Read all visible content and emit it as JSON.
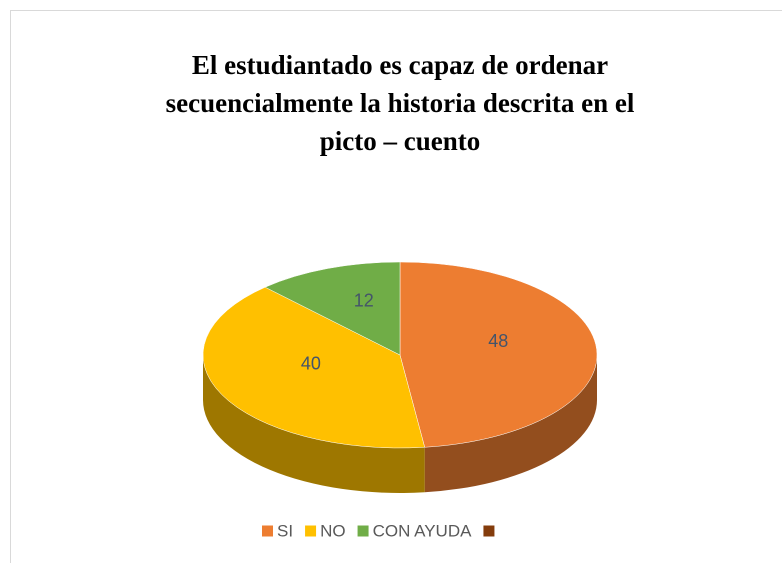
{
  "chart_data": {
    "type": "pie",
    "title": [
      "El estudiantado es capaz de ordenar",
      "secuencialmente la historia descrita en el",
      "picto – cuento"
    ],
    "categories": [
      "SI",
      "NO",
      "CON AYUDA",
      null
    ],
    "values": [
      48,
      40,
      12,
      null
    ],
    "colors": [
      "#ED7D31",
      "#FFC000",
      "#70AD47",
      "#843C0C"
    ],
    "legend": "bottom"
  }
}
